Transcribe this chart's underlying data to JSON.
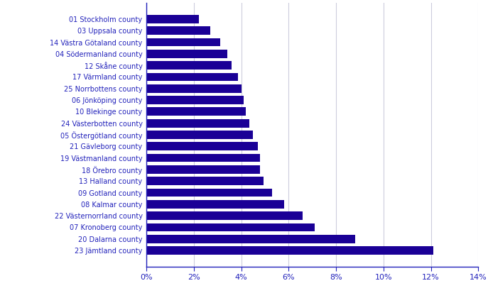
{
  "categories": [
    "01 Stockholm county",
    "03 Uppsala county",
    "14 Västra Götaland county",
    "04 Södermanland county",
    "12 Skåne county",
    "17 Värmland county",
    "25 Norrbottens county",
    "06 Jönköping county",
    "10 Blekinge county",
    "24 Västerbotten county",
    "05 Östergötland county",
    "21 Gävleborg county",
    "19 Västmanland county",
    "18 Örebro county",
    "13 Halland county",
    "09 Gotland county",
    "08 Kalmar county",
    "22 Västernorrland county",
    "07 Kronoberg county",
    "20 Dalarna county",
    "23 Jämtland county"
  ],
  "values": [
    2.2,
    2.7,
    3.1,
    3.4,
    3.6,
    3.85,
    4.0,
    4.1,
    4.2,
    4.35,
    4.5,
    4.7,
    4.8,
    4.8,
    4.95,
    5.3,
    5.8,
    6.6,
    7.1,
    8.8,
    12.1
  ],
  "bar_color": "#1a0096",
  "background_color": "#ffffff",
  "plot_background": "#ffffff",
  "label_color": "#2222bb",
  "axis_color": "#2222bb",
  "tick_color": "#2222bb",
  "xlim": [
    0,
    14
  ],
  "xticks": [
    0,
    2,
    4,
    6,
    8,
    10,
    12,
    14
  ],
  "xtick_labels": [
    "0%",
    "2%",
    "4%",
    "6%",
    "8%",
    "10%",
    "12%",
    "14%"
  ],
  "grid_color": "#ccccdd",
  "bar_height": 0.72,
  "label_fontsize": 7.0,
  "tick_fontsize": 8.0
}
